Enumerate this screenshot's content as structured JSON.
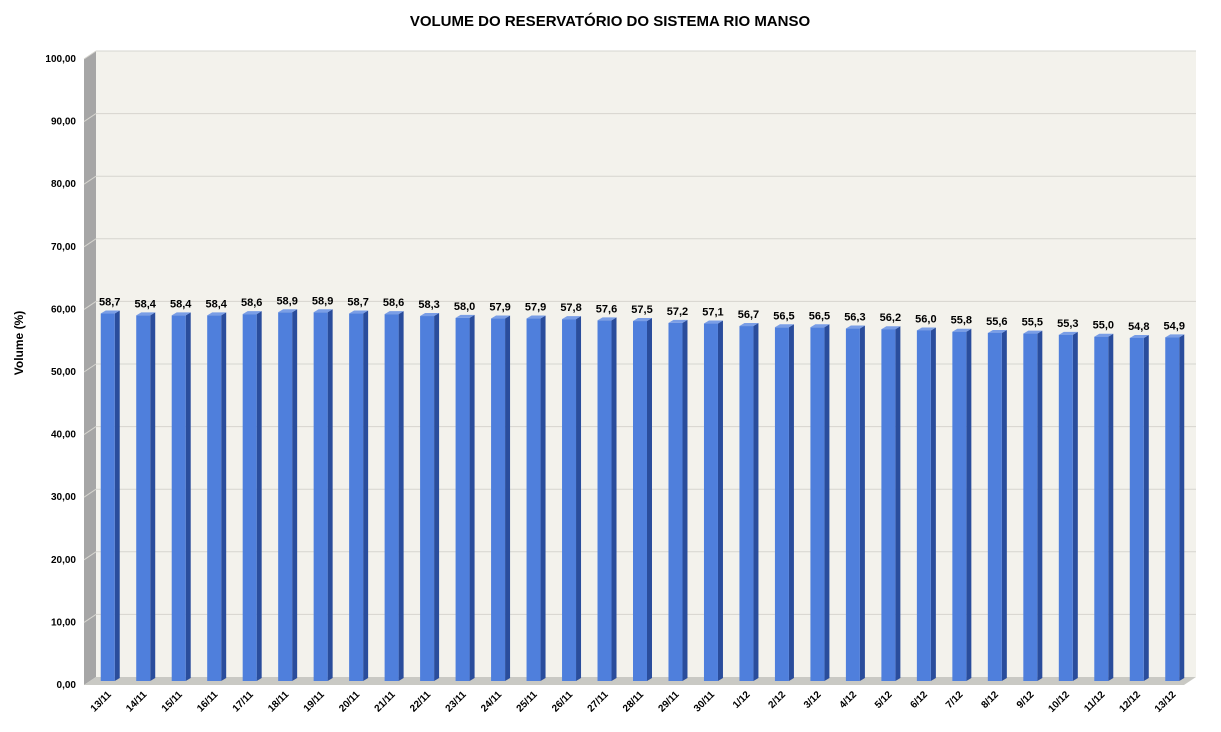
{
  "chart_data": {
    "type": "bar",
    "title": "VOLUME DO RESERVATÓRIO DO SISTEMA RIO MANSO",
    "xlabel": "",
    "ylabel": "Volume (%)",
    "ylim": [
      0,
      100
    ],
    "yticks": [
      "0,00",
      "10,00",
      "20,00",
      "30,00",
      "40,00",
      "50,00",
      "60,00",
      "70,00",
      "80,00",
      "90,00",
      "100,00"
    ],
    "grid": true,
    "legend": "none",
    "categories": [
      "13/11",
      "14/11",
      "15/11",
      "16/11",
      "17/11",
      "18/11",
      "19/11",
      "20/11",
      "21/11",
      "22/11",
      "23/11",
      "24/11",
      "25/11",
      "26/11",
      "27/11",
      "28/11",
      "29/11",
      "30/11",
      "1/12",
      "2/12",
      "3/12",
      "4/12",
      "5/12",
      "6/12",
      "7/12",
      "8/12",
      "9/12",
      "10/12",
      "11/12",
      "12/12",
      "13/12"
    ],
    "values": [
      58.7,
      58.4,
      58.4,
      58.4,
      58.6,
      58.9,
      58.9,
      58.7,
      58.6,
      58.3,
      58.0,
      57.9,
      57.9,
      57.8,
      57.6,
      57.5,
      57.2,
      57.1,
      56.7,
      56.5,
      56.5,
      56.3,
      56.2,
      56.0,
      55.8,
      55.6,
      55.5,
      55.3,
      55.0,
      54.8,
      54.9
    ],
    "data_labels": [
      "58,7",
      "58,4",
      "58,4",
      "58,4",
      "58,6",
      "58,9",
      "58,9",
      "58,7",
      "58,6",
      "58,3",
      "58,0",
      "57,9",
      "57,9",
      "57,8",
      "57,6",
      "57,5",
      "57,2",
      "57,1",
      "56,7",
      "56,5",
      "56,5",
      "56,3",
      "56,2",
      "56,0",
      "55,8",
      "55,6",
      "55,5",
      "55,3",
      "55,0",
      "54,8",
      "54,9"
    ],
    "colors": {
      "bar_front": "#4f7fdc",
      "bar_side": "#2a4d9c",
      "bar_top": "#7a9ee6",
      "plot_back": "#f3f2ec",
      "left_wall": "#a6a6a6",
      "floor": "#c9c9c4",
      "gridline": "#d6d5cf"
    }
  }
}
